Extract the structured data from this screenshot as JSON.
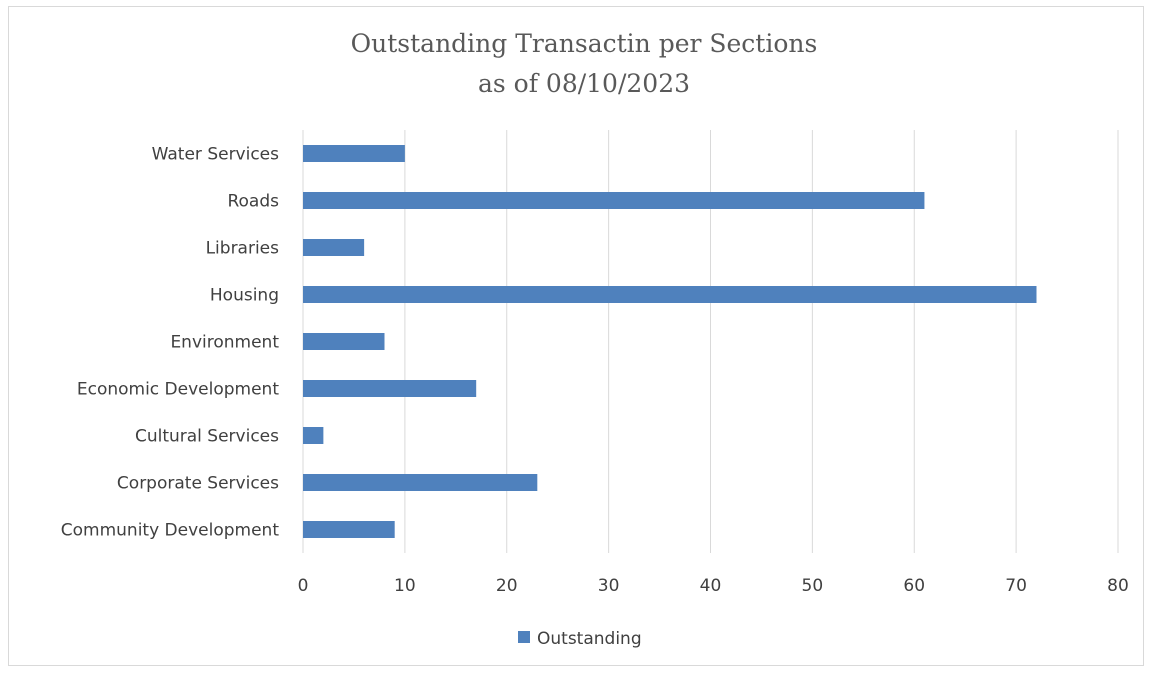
{
  "chart_data": {
    "type": "bar",
    "orientation": "horizontal",
    "title": "Outstanding Transactin per Sections",
    "subtitle": "as of 08/10/2023",
    "categories": [
      "Water Services",
      "Roads",
      "Libraries",
      "Housing",
      "Environment",
      "Economic Development",
      "Cultural Services",
      "Corporate Services",
      "Community Development "
    ],
    "series": [
      {
        "name": "Outstanding",
        "values": [
          10,
          61,
          6,
          72,
          8,
          17,
          2,
          23,
          9
        ],
        "color": "#4f81bd"
      }
    ],
    "x_ticks": [
      "0",
      "10",
      "20",
      "30",
      "40",
      "50",
      "60",
      "70",
      "80"
    ],
    "xlim": [
      0,
      80
    ],
    "grid": "vertical",
    "legend_position": "bottom"
  }
}
